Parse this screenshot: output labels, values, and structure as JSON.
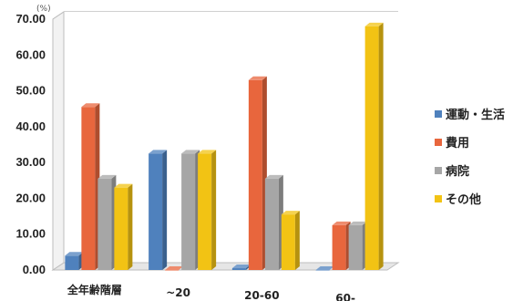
{
  "chart_data": {
    "type": "bar",
    "unit_label": "(%)",
    "categories": [
      "全年齢階層",
      "~20",
      "20-60",
      "60-"
    ],
    "series": [
      {
        "name": "運動・生活",
        "color": "#4f81bd",
        "values": [
          4.0,
          32.5,
          0.5,
          0.0
        ]
      },
      {
        "name": "費用",
        "color": "#e8663d",
        "values": [
          45.5,
          0.0,
          53.0,
          12.5
        ]
      },
      {
        "name": "病院",
        "color": "#a6a6a6",
        "values": [
          25.5,
          32.5,
          25.5,
          12.5
        ]
      },
      {
        "name": "その他",
        "color": "#f2c314",
        "values": [
          23.0,
          32.5,
          15.5,
          68.0
        ]
      }
    ],
    "y_ticks": [
      "0.00",
      "10.00",
      "20.00",
      "30.00",
      "40.00",
      "50.00",
      "60.00",
      "70.00"
    ],
    "ylim": [
      0,
      70
    ],
    "grid": true,
    "legend_position": "right"
  }
}
